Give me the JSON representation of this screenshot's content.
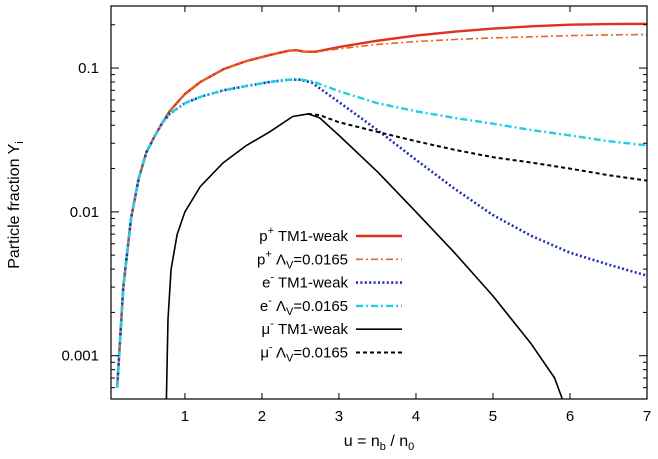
{
  "chart_data": {
    "type": "line",
    "title": "",
    "xlabel": {
      "main": "u = n",
      "sub1": "b",
      "mid": " / n",
      "sub2": "0"
    },
    "ylabel": {
      "main": "Particle fraction Y",
      "sub": "i"
    },
    "xlim": [
      0.04,
      7
    ],
    "ylim": [
      0.0005,
      0.27
    ],
    "yscale": "log",
    "grid": false,
    "legend_position": "center-left",
    "x_ticks": [
      1,
      2,
      3,
      4,
      5,
      6,
      7
    ],
    "x_tick_labels": [
      "1",
      "2",
      "3",
      "4",
      "5",
      "6",
      "7"
    ],
    "y_ticks": [
      0.001,
      0.01,
      0.1
    ],
    "y_tick_labels": [
      "0.001",
      "0.01",
      "0.1"
    ],
    "series": [
      {
        "id": "p-tm1",
        "legend": {
          "particle": "p",
          "charge": "+",
          "label": "TM1-weak"
        },
        "color": "#e0301e",
        "style": "solid",
        "width": 2.4,
        "x": [
          0.12,
          0.2,
          0.3,
          0.4,
          0.5,
          0.6,
          0.7,
          0.8,
          1.0,
          1.2,
          1.5,
          1.8,
          2.1,
          2.35,
          2.45,
          2.55,
          2.7,
          3.0,
          3.5,
          4.0,
          4.5,
          5.0,
          5.5,
          6.0,
          6.5,
          7.0
        ],
        "y": [
          0.0006,
          0.003,
          0.009,
          0.017,
          0.026,
          0.033,
          0.041,
          0.05,
          0.066,
          0.08,
          0.098,
          0.112,
          0.123,
          0.132,
          0.133,
          0.13,
          0.13,
          0.14,
          0.155,
          0.168,
          0.179,
          0.188,
          0.195,
          0.2,
          0.202,
          0.203
        ]
      },
      {
        "id": "p-lambda",
        "legend": {
          "particle": "p",
          "charge": "+",
          "label": "Λ",
          "label_sub": "V",
          "label_tail": "=0.0165"
        },
        "color": "#e06a1a",
        "style": "dashdot",
        "width": 1.6,
        "x": [
          0.12,
          0.2,
          0.3,
          0.4,
          0.5,
          0.6,
          0.7,
          0.8,
          1.0,
          1.2,
          1.5,
          1.8,
          2.1,
          2.35,
          2.45,
          2.55,
          2.7,
          3.0,
          3.5,
          4.0,
          4.5,
          5.0,
          5.5,
          6.0,
          6.5,
          7.0
        ],
        "y": [
          0.0006,
          0.003,
          0.009,
          0.017,
          0.026,
          0.033,
          0.041,
          0.05,
          0.066,
          0.08,
          0.098,
          0.112,
          0.123,
          0.132,
          0.133,
          0.13,
          0.129,
          0.136,
          0.146,
          0.153,
          0.158,
          0.162,
          0.165,
          0.168,
          0.17,
          0.171
        ]
      },
      {
        "id": "e-tm1",
        "legend": {
          "particle": "e",
          "charge": "-",
          "label": "TM1-weak"
        },
        "color": "#1f2fb5",
        "style": "dotted",
        "width": 2.6,
        "x": [
          0.12,
          0.2,
          0.3,
          0.4,
          0.5,
          0.6,
          0.7,
          0.8,
          1.0,
          1.2,
          1.5,
          1.8,
          2.1,
          2.35,
          2.5,
          2.65,
          3.0,
          3.5,
          4.0,
          4.5,
          5.0,
          5.5,
          6.0,
          6.5,
          7.0
        ],
        "y": [
          0.0006,
          0.003,
          0.009,
          0.017,
          0.026,
          0.033,
          0.041,
          0.048,
          0.057,
          0.063,
          0.07,
          0.075,
          0.08,
          0.083,
          0.083,
          0.079,
          0.058,
          0.037,
          0.023,
          0.0145,
          0.0095,
          0.0068,
          0.0052,
          0.0043,
          0.0036
        ]
      },
      {
        "id": "e-lambda",
        "legend": {
          "particle": "e",
          "charge": "-",
          "label": "Λ",
          "label_sub": "V",
          "label_tail": "=0.0165"
        },
        "color": "#1ad1e6",
        "style": "dashdot",
        "width": 2.4,
        "x": [
          0.12,
          0.2,
          0.3,
          0.4,
          0.5,
          0.6,
          0.7,
          0.8,
          1.0,
          1.2,
          1.5,
          1.8,
          2.1,
          2.35,
          2.5,
          2.65,
          3.0,
          3.5,
          4.0,
          4.5,
          5.0,
          5.5,
          6.0,
          6.5,
          7.0
        ],
        "y": [
          0.0006,
          0.003,
          0.009,
          0.017,
          0.026,
          0.033,
          0.041,
          0.048,
          0.057,
          0.063,
          0.07,
          0.075,
          0.08,
          0.083,
          0.083,
          0.081,
          0.069,
          0.057,
          0.05,
          0.045,
          0.041,
          0.037,
          0.034,
          0.031,
          0.029
        ]
      },
      {
        "id": "mu-tm1",
        "legend": {
          "particle": "μ",
          "charge": "-",
          "label": "TM1-weak"
        },
        "color": "#000000",
        "style": "solid",
        "width": 1.6,
        "x": [
          0.76,
          0.78,
          0.82,
          0.9,
          1.0,
          1.2,
          1.5,
          1.8,
          2.1,
          2.4,
          2.6,
          2.75,
          3.0,
          3.5,
          4.0,
          4.5,
          5.0,
          5.5,
          5.8,
          5.9
        ],
        "y": [
          0.0005,
          0.0018,
          0.004,
          0.007,
          0.01,
          0.015,
          0.022,
          0.029,
          0.036,
          0.046,
          0.048,
          0.045,
          0.034,
          0.019,
          0.01,
          0.0052,
          0.0026,
          0.0012,
          0.0007,
          0.0005
        ]
      },
      {
        "id": "mu-lambda",
        "legend": {
          "particle": "μ",
          "charge": "-",
          "label": "Λ",
          "label_sub": "V",
          "label_tail": "=0.0165"
        },
        "color": "#000000",
        "style": "dashed",
        "width": 2.0,
        "x": [
          2.6,
          2.75,
          3.0,
          3.5,
          4.0,
          4.5,
          5.0,
          5.5,
          6.0,
          6.5,
          7.0
        ],
        "y": [
          0.048,
          0.047,
          0.042,
          0.036,
          0.031,
          0.027,
          0.024,
          0.022,
          0.02,
          0.018,
          0.0165
        ]
      }
    ]
  }
}
